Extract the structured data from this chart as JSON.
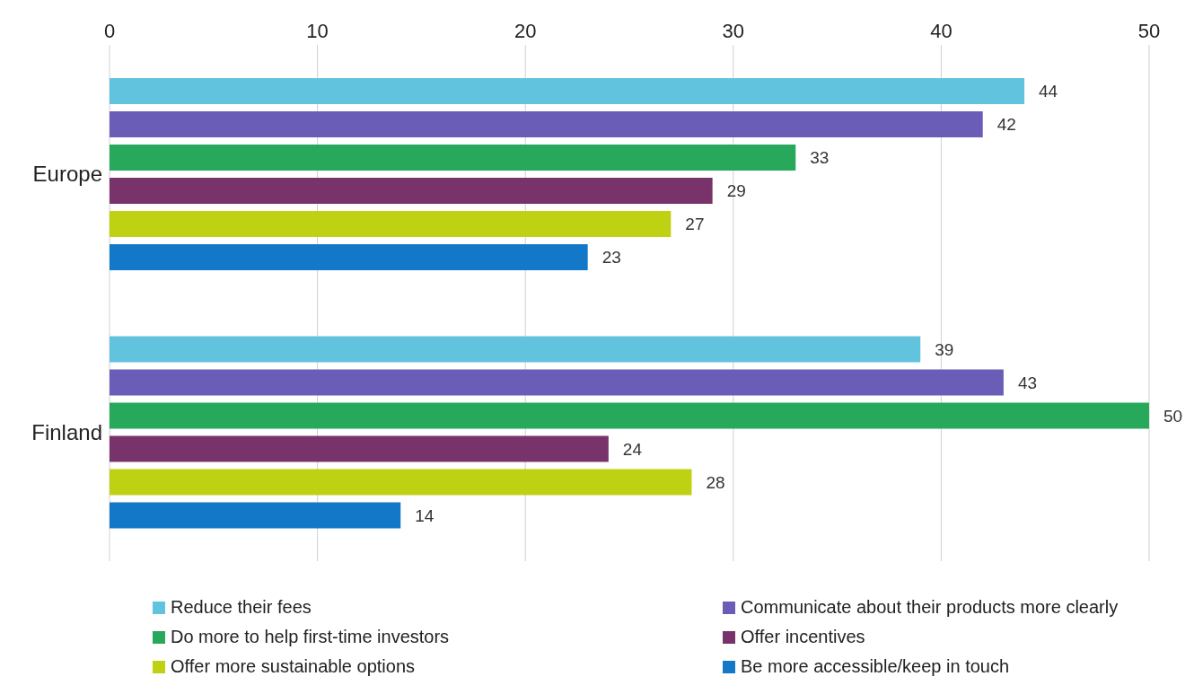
{
  "chart_data": {
    "type": "bar",
    "orientation": "horizontal",
    "categories": [
      "Europe",
      "Finland"
    ],
    "series": [
      {
        "name": "Reduce their fees",
        "color": "#62c3de",
        "values": [
          44,
          39
        ]
      },
      {
        "name": "Communicate about their products more clearly",
        "color": "#6a5db8",
        "values": [
          42,
          43
        ]
      },
      {
        "name": "Do more to help first-time investors",
        "color": "#27a85a",
        "values": [
          33,
          50
        ]
      },
      {
        "name": "Offer incentives",
        "color": "#77336a",
        "values": [
          29,
          24
        ]
      },
      {
        "name": "Offer more sustainable options",
        "color": "#bed113",
        "values": [
          27,
          28
        ]
      },
      {
        "name": "Be more accessible/keep in touch",
        "color": "#1478c8",
        "values": [
          23,
          14
        ]
      }
    ],
    "xlim": [
      0,
      50
    ],
    "xticks": [
      0,
      10,
      20,
      30,
      40,
      50
    ],
    "grid": "x",
    "data_labels": true,
    "legend": "bottom"
  }
}
